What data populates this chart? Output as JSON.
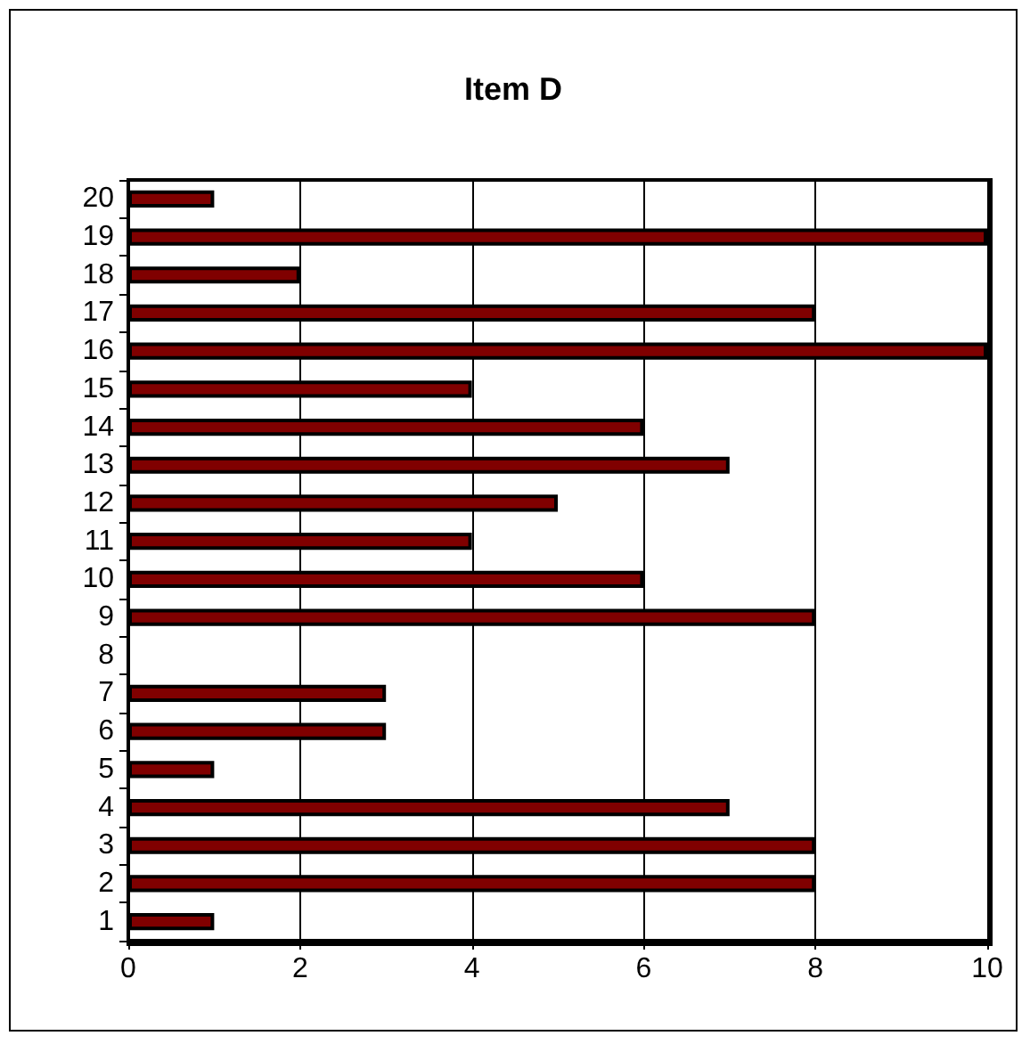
{
  "chart_data": {
    "type": "bar",
    "orientation": "horizontal",
    "title": "Item D",
    "categories": [
      "20",
      "19",
      "18",
      "17",
      "16",
      "15",
      "14",
      "13",
      "12",
      "11",
      "10",
      "9",
      "8",
      "7",
      "6",
      "5",
      "4",
      "3",
      "2",
      "1"
    ],
    "values": [
      1,
      10,
      2,
      8,
      10,
      4,
      6,
      7,
      5,
      4,
      6,
      8,
      null,
      3,
      3,
      1,
      7,
      8,
      8,
      1
    ],
    "color": "#800000",
    "xlim": [
      0,
      10
    ],
    "xticks": [
      0,
      2,
      4,
      6,
      8,
      10
    ],
    "grid": "x"
  }
}
